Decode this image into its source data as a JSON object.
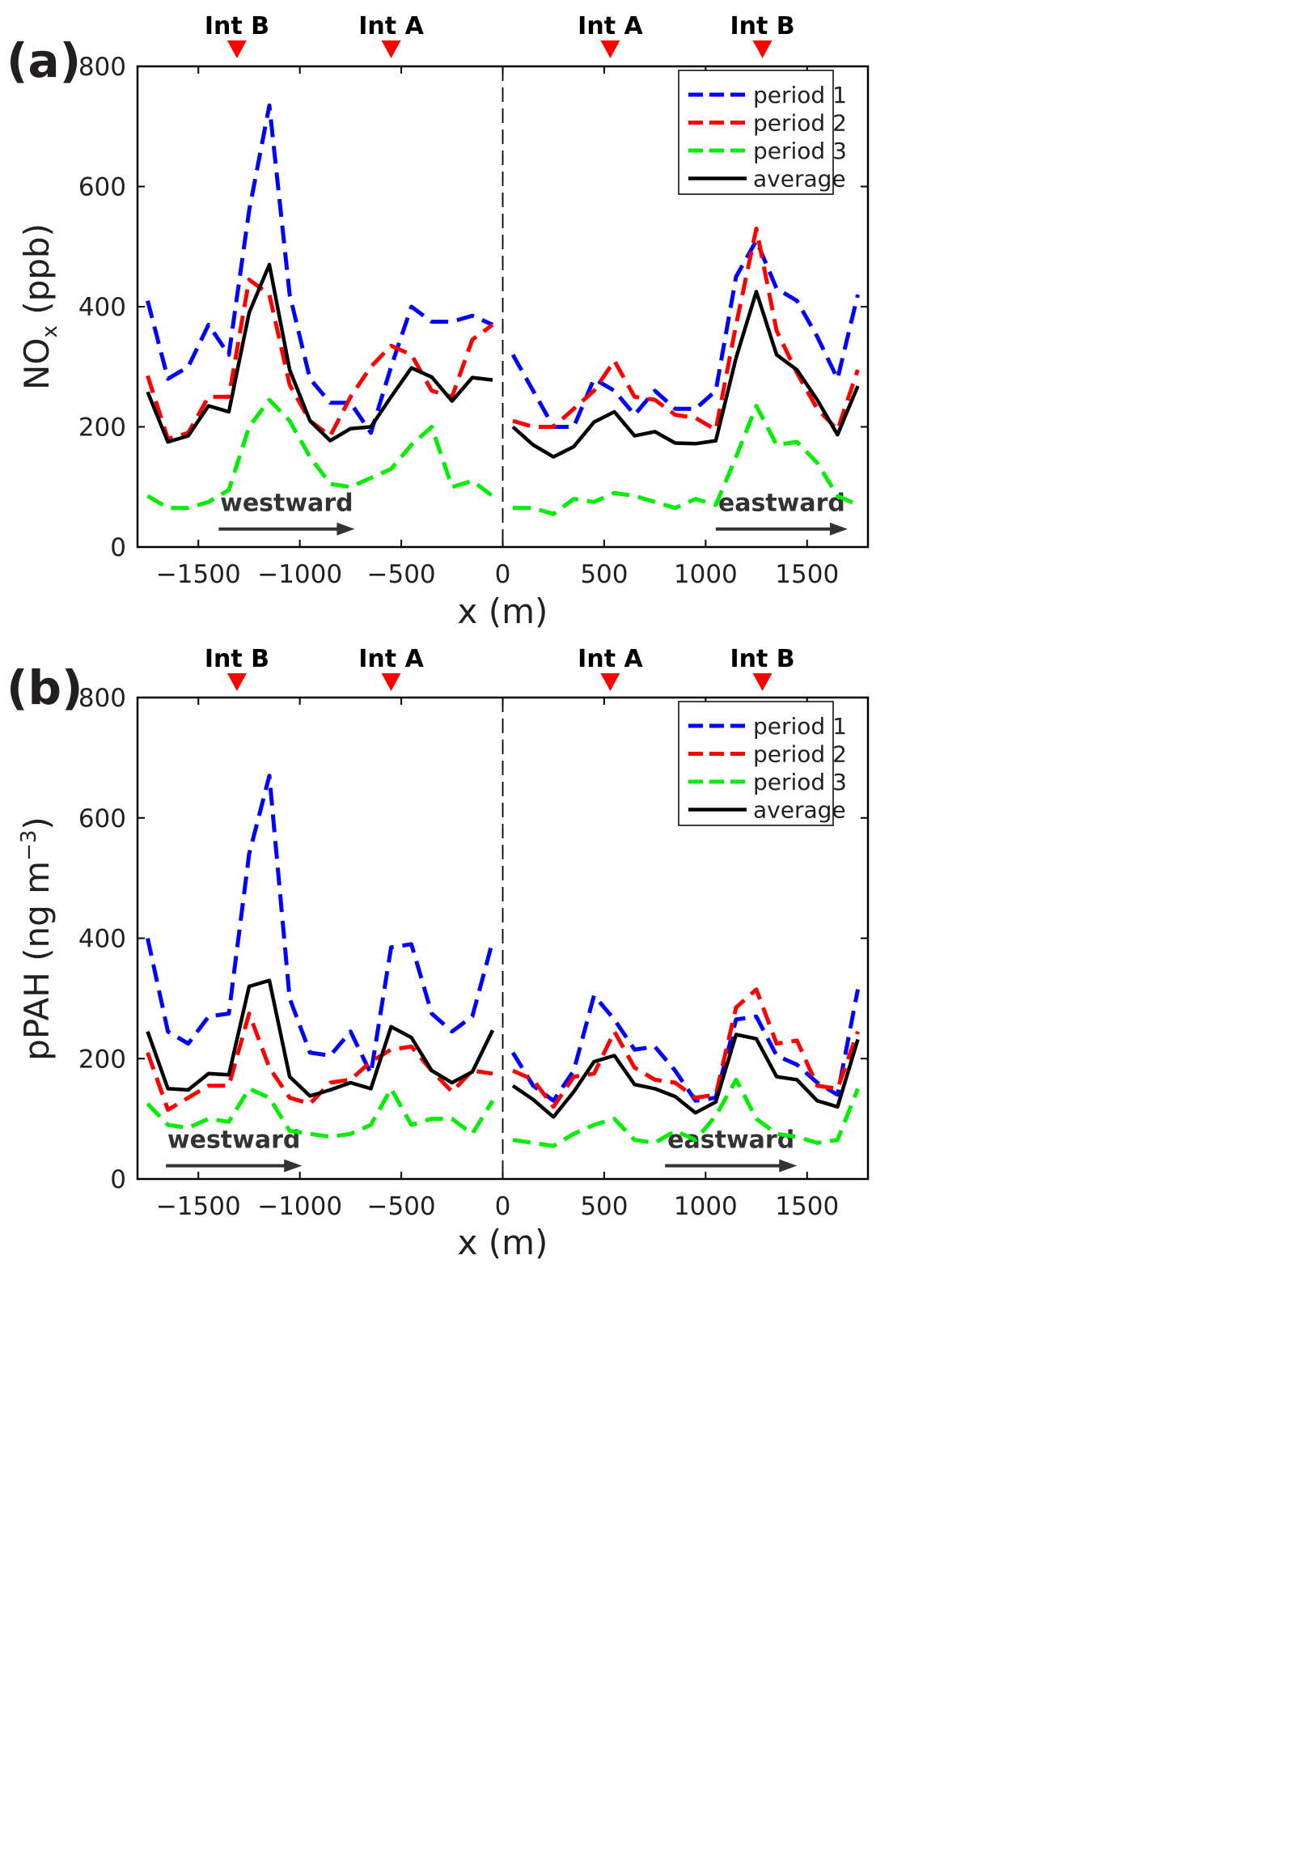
{
  "colors": {
    "period1": "#0000ff",
    "period2": "#ff0000",
    "period3": "#00ee00",
    "average": "#000000",
    "marker": "#ff0000",
    "arrow": "#333333"
  },
  "chart_data": [
    {
      "type": "line",
      "panel_label": "(a)",
      "xlabel": "x (m)",
      "ylabel_main": "NO",
      "ylabel_sub": "x",
      "ylabel_unit": " (ppb)",
      "xlim": [
        -1800,
        1800
      ],
      "ylim": [
        0,
        800
      ],
      "xticks": [
        -1500,
        -1000,
        -500,
        0,
        500,
        1000,
        1500
      ],
      "xtick_labels": [
        "−1500",
        "−1000",
        "−500",
        "0",
        "500",
        "1000",
        "1500"
      ],
      "yticks": [
        0,
        200,
        400,
        600,
        800
      ],
      "ytick_labels": [
        "0",
        "200",
        "400",
        "600",
        "800"
      ],
      "intersections": [
        {
          "label": "Int B",
          "x": -1310
        },
        {
          "label": "Int A",
          "x": -550
        },
        {
          "label": "Int A",
          "x": 530
        },
        {
          "label": "Int B",
          "x": 1280
        }
      ],
      "direction_labels": [
        {
          "label": "westward",
          "x_start": -1400,
          "x_end": -730,
          "y": 30,
          "text_y": 60
        },
        {
          "label": "eastward",
          "x_start": 1050,
          "x_end": 1700,
          "y": 30,
          "text_y": 60
        }
      ],
      "legend": [
        "period 1",
        "period 2",
        "period 3",
        "average"
      ],
      "series": [
        {
          "name": "period 1",
          "style": "dashed",
          "color_key": "period1",
          "segments": [
            {
              "x": [
                -1750,
                -1650,
                -1550,
                -1450,
                -1350,
                -1250,
                -1150,
                -1050,
                -950,
                -850,
                -750,
                -650,
                -550,
                -450,
                -350,
                -250,
                -150,
                -50
              ],
              "y": [
                410,
                280,
                300,
                370,
                320,
                560,
                735,
                420,
                280,
                240,
                240,
                190,
                300,
                400,
                375,
                375,
                385,
                370
              ]
            },
            {
              "x": [
                50,
                150,
                250,
                350,
                450,
                550,
                650,
                750,
                850,
                950,
                1050,
                1150,
                1250,
                1350,
                1450,
                1550,
                1650,
                1750
              ],
              "y": [
                320,
                260,
                200,
                200,
                280,
                260,
                220,
                260,
                230,
                230,
                260,
                450,
                510,
                430,
                410,
                350,
                280,
                420
              ]
            }
          ]
        },
        {
          "name": "period 2",
          "style": "dashed",
          "color_key": "period2",
          "segments": [
            {
              "x": [
                -1750,
                -1650,
                -1550,
                -1450,
                -1350,
                -1250,
                -1150,
                -1050,
                -950,
                -850,
                -750,
                -650,
                -550,
                -450,
                -350,
                -250,
                -150,
                -50
              ],
              "y": [
                285,
                180,
                190,
                250,
                250,
                445,
                420,
                270,
                210,
                185,
                250,
                300,
                335,
                320,
                260,
                250,
                345,
                370
              ]
            },
            {
              "x": [
                50,
                150,
                250,
                350,
                450,
                550,
                650,
                750,
                850,
                950,
                1050,
                1150,
                1250,
                1350,
                1450,
                1550,
                1650,
                1750
              ],
              "y": [
                210,
                200,
                200,
                230,
                260,
                310,
                250,
                245,
                220,
                215,
                195,
                370,
                530,
                360,
                290,
                230,
                195,
                295
              ]
            }
          ]
        },
        {
          "name": "period 3",
          "style": "dashed",
          "color_key": "period3",
          "segments": [
            {
              "x": [
                -1750,
                -1650,
                -1550,
                -1450,
                -1350,
                -1250,
                -1150,
                -1050,
                -950,
                -850,
                -750,
                -650,
                -550,
                -450,
                -350,
                -250,
                -150,
                -50
              ],
              "y": [
                85,
                65,
                65,
                75,
                95,
                200,
                245,
                210,
                150,
                105,
                100,
                115,
                130,
                170,
                200,
                100,
                110,
                85
              ]
            },
            {
              "x": [
                50,
                150,
                250,
                350,
                450,
                550,
                650,
                750,
                850,
                950,
                1050,
                1150,
                1250,
                1350,
                1450,
                1550,
                1650,
                1750
              ],
              "y": [
                65,
                65,
                55,
                80,
                75,
                90,
                85,
                75,
                65,
                80,
                70,
                150,
                235,
                170,
                175,
                140,
                85,
                70
              ]
            }
          ]
        },
        {
          "name": "average",
          "style": "solid",
          "color_key": "average",
          "segments": [
            {
              "x": [
                -1750,
                -1650,
                -1550,
                -1450,
                -1350,
                -1250,
                -1150,
                -1050,
                -950,
                -850,
                -750,
                -650,
                -550,
                -450,
                -350,
                -250,
                -150,
                -50
              ],
              "y": [
                258,
                175,
                185,
                235,
                225,
                390,
                470,
                295,
                210,
                177,
                197,
                200,
                250,
                298,
                283,
                243,
                282,
                278
              ]
            },
            {
              "x": [
                50,
                150,
                250,
                350,
                450,
                550,
                650,
                750,
                850,
                950,
                1050,
                1150,
                1250,
                1350,
                1450,
                1550,
                1650,
                1750
              ],
              "y": [
                200,
                170,
                150,
                167,
                208,
                225,
                185,
                192,
                173,
                172,
                177,
                315,
                425,
                320,
                295,
                245,
                187,
                268
              ]
            }
          ]
        }
      ]
    },
    {
      "type": "line",
      "panel_label": "(b)",
      "xlabel": "x (m)",
      "ylabel_main": "pPAH (ng m",
      "ylabel_sup": "−3",
      "ylabel_close": ")",
      "xlim": [
        -1800,
        1800
      ],
      "ylim": [
        0,
        800
      ],
      "xticks": [
        -1500,
        -1000,
        -500,
        0,
        500,
        1000,
        1500
      ],
      "xtick_labels": [
        "−1500",
        "−1000",
        "−500",
        "0",
        "500",
        "1000",
        "1500"
      ],
      "yticks": [
        0,
        200,
        400,
        600,
        800
      ],
      "ytick_labels": [
        "0",
        "200",
        "400",
        "600",
        "800"
      ],
      "intersections": [
        {
          "label": "Int B",
          "x": -1310
        },
        {
          "label": "Int A",
          "x": -550
        },
        {
          "label": "Int A",
          "x": 530
        },
        {
          "label": "Int B",
          "x": 1280
        }
      ],
      "direction_labels": [
        {
          "label": "westward",
          "x_start": -1660,
          "x_end": -990,
          "y": 22,
          "text_y": 52
        },
        {
          "label": "eastward",
          "x_start": 800,
          "x_end": 1450,
          "y": 22,
          "text_y": 52
        }
      ],
      "legend": [
        "period 1",
        "period 2",
        "period 3",
        "average"
      ],
      "series": [
        {
          "name": "period 1",
          "style": "dashed",
          "color_key": "period1",
          "segments": [
            {
              "x": [
                -1750,
                -1650,
                -1550,
                -1450,
                -1350,
                -1250,
                -1150,
                -1050,
                -950,
                -850,
                -750,
                -650,
                -550,
                -450,
                -350,
                -250,
                -150,
                -50
              ],
              "y": [
                400,
                245,
                225,
                270,
                275,
                540,
                670,
                300,
                210,
                205,
                245,
                175,
                385,
                390,
                275,
                245,
                270,
                395
              ]
            },
            {
              "x": [
                50,
                150,
                250,
                350,
                450,
                550,
                650,
                750,
                850,
                950,
                1050,
                1150,
                1250,
                1350,
                1450,
                1550,
                1650,
                1750
              ],
              "y": [
                210,
                155,
                130,
                180,
                305,
                265,
                215,
                220,
                180,
                130,
                135,
                265,
                270,
                205,
                190,
                160,
                140,
                315
              ]
            }
          ]
        },
        {
          "name": "period 2",
          "style": "dashed",
          "color_key": "period2",
          "segments": [
            {
              "x": [
                -1750,
                -1650,
                -1550,
                -1450,
                -1350,
                -1250,
                -1150,
                -1050,
                -950,
                -850,
                -750,
                -650,
                -550,
                -450,
                -350,
                -250,
                -150,
                -50
              ],
              "y": [
                210,
                115,
                135,
                155,
                155,
                275,
                185,
                135,
                125,
                160,
                165,
                195,
                215,
                220,
                180,
                145,
                180,
                175
              ]
            },
            {
              "x": [
                50,
                150,
                250,
                350,
                450,
                550,
                650,
                750,
                850,
                950,
                1050,
                1150,
                1250,
                1350,
                1450,
                1550,
                1650,
                1750
              ],
              "y": [
                180,
                165,
                120,
                170,
                175,
                245,
                185,
                165,
                160,
                135,
                140,
                285,
                315,
                225,
                230,
                155,
                150,
                245
              ]
            }
          ]
        },
        {
          "name": "period 3",
          "style": "dashed",
          "color_key": "period3",
          "segments": [
            {
              "x": [
                -1750,
                -1650,
                -1550,
                -1450,
                -1350,
                -1250,
                -1150,
                -1050,
                -950,
                -850,
                -750,
                -650,
                -550,
                -450,
                -350,
                -250,
                -150,
                -50
              ],
              "y": [
                125,
                90,
                85,
                100,
                95,
                150,
                135,
                80,
                75,
                70,
                75,
                90,
                150,
                90,
                100,
                100,
                75,
                130
              ]
            },
            {
              "x": [
                50,
                150,
                250,
                350,
                450,
                550,
                650,
                750,
                850,
                950,
                1050,
                1150,
                1250,
                1350,
                1450,
                1550,
                1650,
                1750
              ],
              "y": [
                65,
                60,
                55,
                75,
                90,
                100,
                65,
                60,
                80,
                65,
                105,
                165,
                100,
                75,
                70,
                60,
                65,
                150
              ]
            }
          ]
        },
        {
          "name": "average",
          "style": "solid",
          "color_key": "average",
          "segments": [
            {
              "x": [
                -1750,
                -1650,
                -1550,
                -1450,
                -1350,
                -1250,
                -1150,
                -1050,
                -950,
                -850,
                -750,
                -650,
                -550,
                -450,
                -350,
                -250,
                -150,
                -50
              ],
              "y": [
                245,
                150,
                148,
                175,
                173,
                320,
                330,
                170,
                138,
                148,
                160,
                150,
                253,
                235,
                180,
                160,
                178,
                247
              ]
            },
            {
              "x": [
                50,
                150,
                250,
                350,
                450,
                550,
                650,
                750,
                850,
                950,
                1050,
                1150,
                1250,
                1350,
                1450,
                1550,
                1650,
                1750
              ],
              "y": [
                155,
                132,
                103,
                145,
                195,
                205,
                157,
                150,
                137,
                110,
                128,
                240,
                233,
                170,
                165,
                130,
                120,
                232
              ]
            }
          ]
        }
      ]
    }
  ]
}
